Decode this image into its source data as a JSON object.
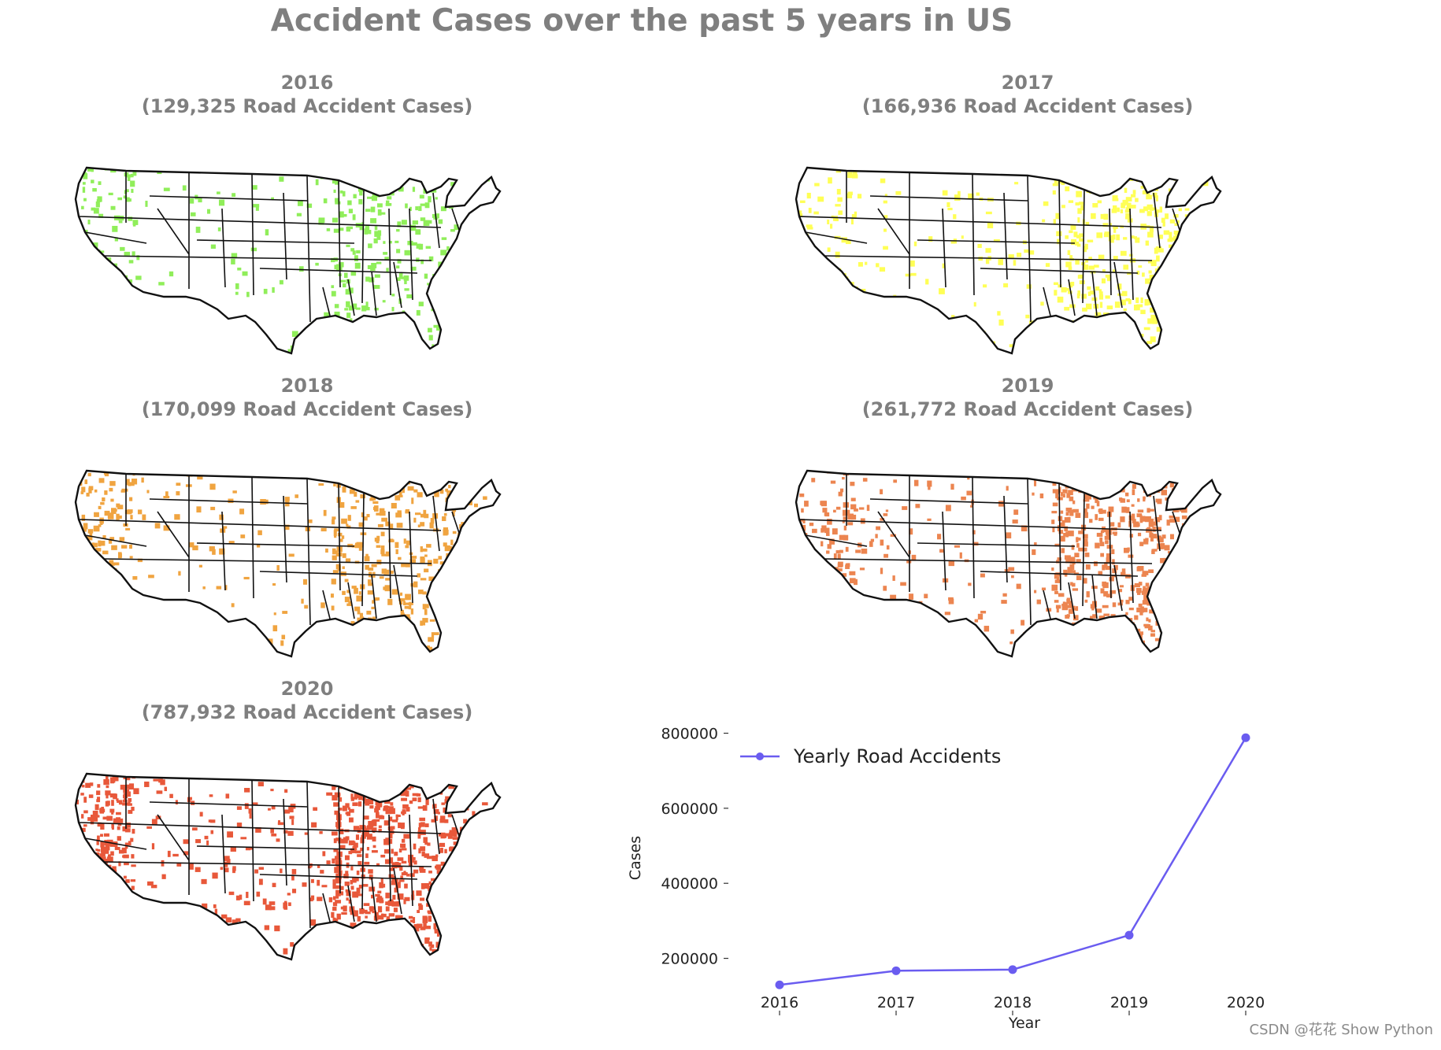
{
  "title": "Accident Cases over the past 5 years in US",
  "maps": [
    {
      "year": "2016",
      "subtitle": "(129,325 Road Accident Cases)",
      "color": "#90ee5a",
      "density": 0.35
    },
    {
      "year": "2017",
      "subtitle": "(166,936 Road Accident Cases)",
      "color": "#ffff55",
      "density": 0.42
    },
    {
      "year": "2018",
      "subtitle": "(170,099 Road Accident Cases)",
      "color": "#f0a440",
      "density": 0.45
    },
    {
      "year": "2019",
      "subtitle": "(261,772 Road Accident Cases)",
      "color": "#ec8550",
      "density": 0.6
    },
    {
      "year": "2020",
      "subtitle": "(787,932 Road Accident Cases)",
      "color": "#e8583a",
      "density": 0.82
    }
  ],
  "chart_data": {
    "type": "line",
    "x": [
      "2016",
      "2017",
      "2018",
      "2019",
      "2020"
    ],
    "series": [
      {
        "name": "Yearly Road Accidents",
        "values": [
          129325,
          166936,
          170099,
          261772,
          787932
        ],
        "color": "#6a5cf0"
      }
    ],
    "xlabel": "Year",
    "ylabel": "Cases",
    "yticks": [
      "200000",
      "400000",
      "600000",
      "800000"
    ],
    "ylim": [
      90000,
      820000
    ],
    "legend": "upper-left"
  },
  "watermark": "CSDN @花花 Show Python"
}
